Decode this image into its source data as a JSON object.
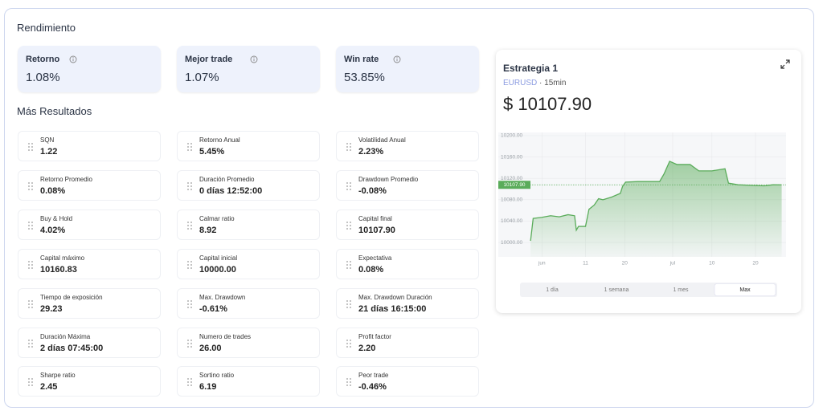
{
  "header": {
    "title": "Rendimiento"
  },
  "kpis": [
    {
      "label": "Retorno",
      "value": "1.08%"
    },
    {
      "label": "Mejor trade",
      "value": "1.07%"
    },
    {
      "label": "Win rate",
      "value": "53.85%"
    }
  ],
  "section_title": "Más Resultados",
  "metrics": [
    {
      "label": "SQN",
      "value": "1.22"
    },
    {
      "label": "Retorno Anual",
      "value": "5.45%"
    },
    {
      "label": "Volatilidad Anual",
      "value": "2.23%"
    },
    {
      "label": "Retorno Promedio",
      "value": "0.08%"
    },
    {
      "label": "Duración Promedio",
      "value": "0 días 12:52:00"
    },
    {
      "label": "Drawdown Promedio",
      "value": "-0.08%"
    },
    {
      "label": "Buy & Hold",
      "value": "4.02%"
    },
    {
      "label": "Calmar ratio",
      "value": "8.92"
    },
    {
      "label": "Capital final",
      "value": "10107.90"
    },
    {
      "label": "Capital máximo",
      "value": "10160.83"
    },
    {
      "label": "Capital inicial",
      "value": "10000.00"
    },
    {
      "label": "Expectativa",
      "value": "0.08%"
    },
    {
      "label": "Tiempo de exposición",
      "value": "29.23"
    },
    {
      "label": "Max. Drawdown",
      "value": "-0.61%"
    },
    {
      "label": "Max. Drawdown Duración",
      "value": "21 días 16:15:00"
    },
    {
      "label": "Duración Máxima",
      "value": "2 días 07:45:00"
    },
    {
      "label": "Numero de trades",
      "value": "26.00"
    },
    {
      "label": "Profit factor",
      "value": "2.20"
    },
    {
      "label": "Sharpe ratio",
      "value": "2.45"
    },
    {
      "label": "Sortino ratio",
      "value": "6.19"
    },
    {
      "label": "Peor trade",
      "value": "-0.46%"
    }
  ],
  "strategy": {
    "title": "Estrategia 1",
    "symbol": "EURUSD",
    "separator": "·",
    "timeframe": "15min",
    "price": "$ 10107.90"
  },
  "chart_data": {
    "type": "area",
    "color": "#5aac5a",
    "grid": true,
    "x": [
      -1.6,
      -1.0,
      1,
      3,
      5,
      7,
      8.5,
      8.9,
      9.4,
      11,
      11.8,
      13,
      14,
      15,
      17,
      19,
      19.5,
      20.2,
      23,
      26,
      28,
      29,
      30.3,
      32,
      35,
      37,
      40,
      43,
      43.8,
      46,
      49,
      52,
      54,
      56
    ],
    "values": [
      10003,
      10045,
      10047,
      10050,
      10048,
      10052,
      10050,
      10023,
      10030,
      10030,
      10062,
      10070,
      10082,
      10080,
      10085,
      10092,
      10105,
      10113,
      10114,
      10114,
      10114,
      10128,
      10152,
      10146,
      10146,
      10134,
      10134,
      10138,
      10111,
      10108,
      10107,
      10106,
      10108,
      10107.9
    ],
    "xlim": [
      -9,
      57
    ],
    "xticks": [
      {
        "value": 1,
        "label": "jun"
      },
      11,
      20,
      {
        "value": 31,
        "label": "jul"
      },
      {
        "value": 40,
        "label": "10"
      },
      {
        "value": 50,
        "label": "20"
      }
    ],
    "ylim": [
      9973,
      10206
    ],
    "yticks": [
      {
        "value": 10000,
        "label": "10000.00"
      },
      {
        "value": 10040,
        "label": "10040.00"
      },
      {
        "value": 10080,
        "label": "10080.00"
      },
      {
        "value": 10120,
        "label": "10120.00"
      },
      {
        "value": 10160,
        "label": "10160.00"
      },
      {
        "value": 10200,
        "label": "10200.00"
      }
    ],
    "marker": {
      "value": 10107.9,
      "label": "10107.90"
    }
  },
  "range_buttons": [
    "1 día",
    "1 semana",
    "1 mes",
    "Max"
  ],
  "selected_range": 3
}
